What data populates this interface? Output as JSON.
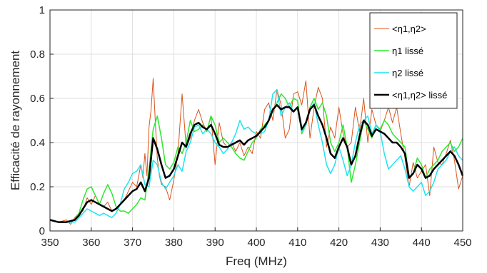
{
  "chart_data": {
    "type": "line",
    "xlabel": "Freq (MHz)",
    "ylabel": "Efficacité de rayonnement",
    "xlim": [
      350,
      450
    ],
    "ylim": [
      0,
      1
    ],
    "xticks": [
      "350",
      "360",
      "370",
      "380",
      "390",
      "400",
      "410",
      "420",
      "430",
      "440",
      "450"
    ],
    "yticks": [
      "0",
      "0.2",
      "0.4",
      "0.6",
      "0.8",
      "1"
    ],
    "grid": true,
    "legend_position": "top-right",
    "series": [
      {
        "name": "<η1,η2>",
        "color": "#d95319",
        "width": 1,
        "x": [
          350,
          352,
          354,
          355,
          356,
          357,
          358,
          359,
          360,
          361,
          362,
          363,
          364,
          365,
          366,
          367,
          368,
          369,
          370,
          371,
          372,
          372.5,
          373,
          373.5,
          374,
          374.5,
          375,
          375.5,
          376,
          376.5,
          377,
          378,
          379,
          380,
          381,
          382,
          383,
          384,
          385,
          386,
          387,
          388,
          389,
          390,
          391,
          392,
          393,
          394,
          395,
          396,
          397,
          398,
          399,
          400,
          401,
          402,
          403,
          404,
          405,
          406,
          407,
          408,
          409,
          410,
          411,
          412,
          413,
          414,
          415,
          416,
          417,
          418,
          419,
          420,
          421,
          422,
          423,
          424,
          425,
          426,
          427,
          428,
          429,
          430,
          431,
          432,
          433,
          434,
          435,
          436,
          437,
          438,
          439,
          440,
          441,
          442,
          443,
          444,
          445,
          446,
          447,
          448,
          449,
          450
        ],
        "y": [
          0.05,
          0.04,
          0.05,
          0.03,
          0.06,
          0.08,
          0.09,
          0.15,
          0.12,
          0.16,
          0.12,
          0.11,
          0.13,
          0.09,
          0.1,
          0.12,
          0.14,
          0.18,
          0.22,
          0.2,
          0.3,
          0.24,
          0.35,
          0.25,
          0.47,
          0.55,
          0.69,
          0.5,
          0.33,
          0.25,
          0.21,
          0.2,
          0.14,
          0.23,
          0.35,
          0.62,
          0.38,
          0.42,
          0.5,
          0.55,
          0.49,
          0.45,
          0.52,
          0.3,
          0.49,
          0.4,
          0.38,
          0.4,
          0.36,
          0.4,
          0.34,
          0.38,
          0.35,
          0.45,
          0.42,
          0.55,
          0.58,
          0.5,
          0.64,
          0.57,
          0.42,
          0.46,
          0.62,
          0.63,
          0.57,
          0.68,
          0.42,
          0.56,
          0.65,
          0.6,
          0.38,
          0.47,
          0.42,
          0.56,
          0.44,
          0.38,
          0.4,
          0.56,
          0.45,
          0.6,
          0.4,
          0.55,
          0.48,
          0.45,
          0.5,
          0.56,
          0.49,
          0.56,
          0.44,
          0.33,
          0.2,
          0.31,
          0.24,
          0.27,
          0.3,
          0.16,
          0.38,
          0.31,
          0.3,
          0.35,
          0.41,
          0.32,
          0.19,
          0.25
        ]
      },
      {
        "name": "η1 lissé",
        "color": "#2ee82e",
        "width": 1.5,
        "x": [
          350,
          352,
          354,
          356,
          357,
          358,
          359,
          360,
          361,
          362,
          363,
          364,
          365,
          366,
          367,
          368,
          369,
          370,
          371,
          372,
          373,
          374,
          375,
          376,
          377,
          378,
          379,
          380,
          381,
          382,
          383,
          384,
          385,
          386,
          387,
          388,
          389,
          390,
          391,
          392,
          393,
          394,
          395,
          396,
          397,
          398,
          399,
          400,
          401,
          402,
          403,
          404,
          405,
          406,
          407,
          408,
          409,
          410,
          411,
          412,
          413,
          414,
          415,
          416,
          417,
          418,
          419,
          420,
          421,
          422,
          423,
          424,
          425,
          426,
          427,
          428,
          429,
          430,
          431,
          432,
          433,
          434,
          435,
          436,
          437,
          438,
          439,
          440,
          441,
          442,
          443,
          444,
          445,
          446,
          447,
          448,
          449,
          450
        ],
        "y": [
          0.05,
          0.04,
          0.04,
          0.05,
          0.08,
          0.14,
          0.19,
          0.2,
          0.16,
          0.12,
          0.17,
          0.21,
          0.17,
          0.11,
          0.09,
          0.09,
          0.08,
          0.1,
          0.12,
          0.15,
          0.14,
          0.28,
          0.46,
          0.52,
          0.42,
          0.3,
          0.28,
          0.31,
          0.38,
          0.35,
          0.4,
          0.5,
          0.45,
          0.46,
          0.48,
          0.45,
          0.52,
          0.48,
          0.4,
          0.42,
          0.4,
          0.38,
          0.35,
          0.33,
          0.32,
          0.36,
          0.4,
          0.42,
          0.46,
          0.48,
          0.5,
          0.54,
          0.58,
          0.62,
          0.6,
          0.56,
          0.6,
          0.59,
          0.44,
          0.48,
          0.56,
          0.6,
          0.55,
          0.58,
          0.52,
          0.4,
          0.36,
          0.4,
          0.48,
          0.38,
          0.22,
          0.3,
          0.4,
          0.5,
          0.46,
          0.42,
          0.48,
          0.46,
          0.5,
          0.48,
          0.44,
          0.42,
          0.4,
          0.38,
          0.24,
          0.26,
          0.33,
          0.3,
          0.24,
          0.28,
          0.3,
          0.32,
          0.36,
          0.38,
          0.4,
          0.36,
          0.38,
          0.42
        ]
      },
      {
        "name": "η2 lissé",
        "color": "#1ee3f0",
        "width": 1.5,
        "x": [
          350,
          352,
          354,
          356,
          357,
          358,
          359,
          360,
          361,
          362,
          363,
          364,
          365,
          366,
          367,
          368,
          369,
          370,
          371,
          372,
          373,
          374,
          375,
          376,
          377,
          378,
          379,
          380,
          381,
          382,
          383,
          384,
          385,
          386,
          387,
          388,
          389,
          390,
          391,
          392,
          393,
          394,
          395,
          396,
          397,
          398,
          399,
          400,
          401,
          402,
          403,
          404,
          405,
          406,
          407,
          408,
          409,
          410,
          411,
          412,
          413,
          414,
          415,
          416,
          417,
          418,
          419,
          420,
          421,
          422,
          423,
          424,
          425,
          426,
          427,
          428,
          429,
          430,
          431,
          432,
          433,
          434,
          435,
          436,
          437,
          438,
          439,
          440,
          441,
          442,
          443,
          444,
          445,
          446,
          447,
          448,
          449,
          450
        ],
        "y": [
          0.05,
          0.04,
          0.04,
          0.04,
          0.06,
          0.08,
          0.1,
          0.09,
          0.08,
          0.07,
          0.08,
          0.07,
          0.06,
          0.08,
          0.12,
          0.19,
          0.22,
          0.26,
          0.27,
          0.3,
          0.21,
          0.2,
          0.32,
          0.3,
          0.22,
          0.19,
          0.22,
          0.25,
          0.3,
          0.27,
          0.36,
          0.4,
          0.47,
          0.48,
          0.44,
          0.46,
          0.44,
          0.4,
          0.38,
          0.35,
          0.37,
          0.4,
          0.44,
          0.5,
          0.46,
          0.47,
          0.45,
          0.44,
          0.44,
          0.45,
          0.5,
          0.62,
          0.64,
          0.52,
          0.56,
          0.58,
          0.54,
          0.56,
          0.45,
          0.48,
          0.55,
          0.58,
          0.48,
          0.4,
          0.3,
          0.26,
          0.3,
          0.38,
          0.32,
          0.25,
          0.3,
          0.4,
          0.48,
          0.5,
          0.52,
          0.44,
          0.48,
          0.45,
          0.35,
          0.28,
          0.3,
          0.32,
          0.34,
          0.28,
          0.2,
          0.18,
          0.2,
          0.22,
          0.16,
          0.18,
          0.22,
          0.28,
          0.3,
          0.32,
          0.36,
          0.38,
          0.34,
          0.32
        ]
      },
      {
        "name": "<η1,η2> lissé",
        "color": "#000000",
        "width": 2.5,
        "x": [
          350,
          352,
          354,
          356,
          357,
          358,
          359,
          360,
          361,
          362,
          363,
          364,
          365,
          366,
          367,
          368,
          369,
          370,
          371,
          372,
          373,
          374,
          375,
          376,
          377,
          378,
          379,
          380,
          381,
          382,
          383,
          384,
          385,
          386,
          387,
          388,
          389,
          390,
          391,
          392,
          393,
          394,
          395,
          396,
          397,
          398,
          399,
          400,
          401,
          402,
          403,
          404,
          405,
          406,
          407,
          408,
          409,
          410,
          411,
          412,
          413,
          414,
          415,
          416,
          417,
          418,
          419,
          420,
          421,
          422,
          423,
          424,
          425,
          426,
          427,
          428,
          429,
          430,
          431,
          432,
          433,
          434,
          435,
          436,
          437,
          438,
          439,
          440,
          441,
          442,
          443,
          444,
          445,
          446,
          447,
          448,
          449,
          450
        ],
        "y": [
          0.05,
          0.04,
          0.04,
          0.05,
          0.07,
          0.1,
          0.13,
          0.14,
          0.13,
          0.12,
          0.11,
          0.1,
          0.09,
          0.1,
          0.12,
          0.14,
          0.16,
          0.18,
          0.19,
          0.22,
          0.18,
          0.24,
          0.42,
          0.37,
          0.3,
          0.24,
          0.25,
          0.28,
          0.34,
          0.4,
          0.38,
          0.44,
          0.48,
          0.49,
          0.47,
          0.46,
          0.48,
          0.44,
          0.39,
          0.38,
          0.38,
          0.39,
          0.4,
          0.41,
          0.39,
          0.41,
          0.42,
          0.43,
          0.45,
          0.47,
          0.5,
          0.55,
          0.57,
          0.55,
          0.56,
          0.56,
          0.54,
          0.56,
          0.46,
          0.49,
          0.55,
          0.57,
          0.52,
          0.48,
          0.42,
          0.35,
          0.33,
          0.38,
          0.42,
          0.38,
          0.3,
          0.34,
          0.43,
          0.5,
          0.48,
          0.43,
          0.46,
          0.45,
          0.44,
          0.42,
          0.4,
          0.4,
          0.38,
          0.35,
          0.24,
          0.26,
          0.3,
          0.28,
          0.24,
          0.25,
          0.28,
          0.3,
          0.32,
          0.34,
          0.36,
          0.34,
          0.3,
          0.25
        ]
      }
    ]
  }
}
